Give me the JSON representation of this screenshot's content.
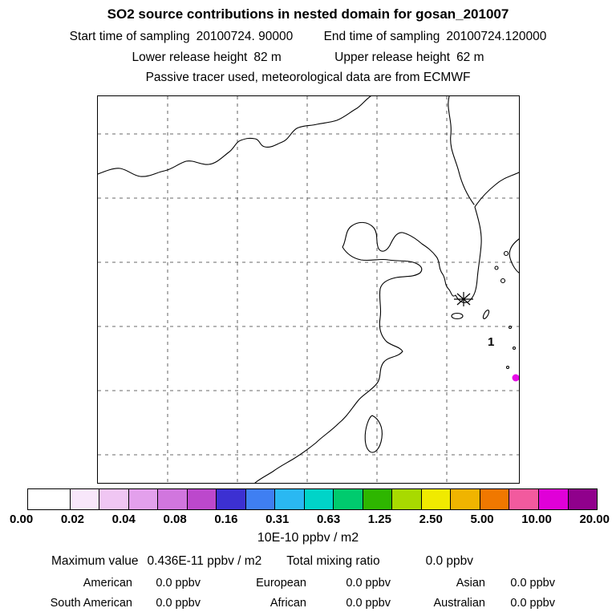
{
  "header": {
    "title": "SO2 source contributions in nested domain for gosan_201007",
    "start_time": {
      "label": "Start time of sampling",
      "value": "20100724. 90000"
    },
    "end_time": {
      "label": "End time of sampling",
      "value": "20100724.120000"
    },
    "lower_release": {
      "label": "Lower release height",
      "value": "82 m"
    },
    "upper_release": {
      "label": "Upper release height",
      "value": "62 m"
    },
    "tracer_note": "Passive tracer used, meteorological data are from ECMWF"
  },
  "map": {
    "release_label": "1",
    "hotspot_color": "#e60ae6"
  },
  "colorbar": {
    "colors": [
      "#ffffff",
      "#f8e7fa",
      "#f0c6f3",
      "#e3a0ec",
      "#d176de",
      "#bc48cc",
      "#3c30d2",
      "#3f7ff2",
      "#2ab8f2",
      "#00d4c8",
      "#00cb6e",
      "#2eb600",
      "#a8da00",
      "#f0ea00",
      "#f0b400",
      "#f07800",
      "#f25a9e",
      "#e000d8",
      "#90008c"
    ],
    "tick_labels": [
      "0.00",
      "0.02",
      "0.04",
      "0.08",
      "0.16",
      "0.31",
      "0.63",
      "1.25",
      "2.50",
      "5.00",
      "10.00",
      "20.00"
    ],
    "unit_label": "10E-10 ppbv / m2"
  },
  "stats": {
    "maximum": {
      "label": "Maximum value",
      "value": "0.436E-11 ppbv / m2"
    },
    "total": {
      "label": "Total mixing ratio",
      "value": "0.0 ppbv"
    },
    "region_rows": [
      [
        {
          "label": "American",
          "value": "0.0 ppbv"
        },
        {
          "label": "European",
          "value": "0.0 ppbv"
        },
        {
          "label": "Asian",
          "value": "0.0 ppbv"
        }
      ],
      [
        {
          "label": "South American",
          "value": "0.0 ppbv"
        },
        {
          "label": "African",
          "value": "0.0 ppbv"
        },
        {
          "label": "Australian",
          "value": "0.0 ppbv"
        }
      ]
    ]
  },
  "chart_data": {
    "type": "map",
    "title": "SO2 source contributions in nested domain for gosan_201007",
    "region_shown": "East Asia (China coast, Korea, Kyushu, Taiwan)",
    "sampling": {
      "start": "20100724. 90000",
      "end": "20100724.120000"
    },
    "release_heights_m": {
      "lower": 82,
      "upper": 62
    },
    "tracer": "Passive tracer, meteorological data from ECMWF",
    "colorbar_levels": [
      0.0,
      0.02,
      0.04,
      0.08,
      0.16,
      0.31,
      0.63,
      1.25,
      2.5,
      5.0,
      10.0,
      20.0
    ],
    "colorbar_unit": "10E-10 ppbv / m2",
    "receptor_marker": {
      "symbol": "asterisk",
      "station": "gosan"
    },
    "release_point_labels": [
      "1"
    ],
    "maximum_value": "0.436E-11 ppbv / m2",
    "total_mixing_ratio": "0.0 ppbv",
    "region_contributions": {
      "American": "0.0 ppbv",
      "European": "0.0 ppbv",
      "Asian": "0.0 ppbv",
      "South American": "0.0 ppbv",
      "African": "0.0 ppbv",
      "Australian": "0.0 ppbv"
    }
  }
}
